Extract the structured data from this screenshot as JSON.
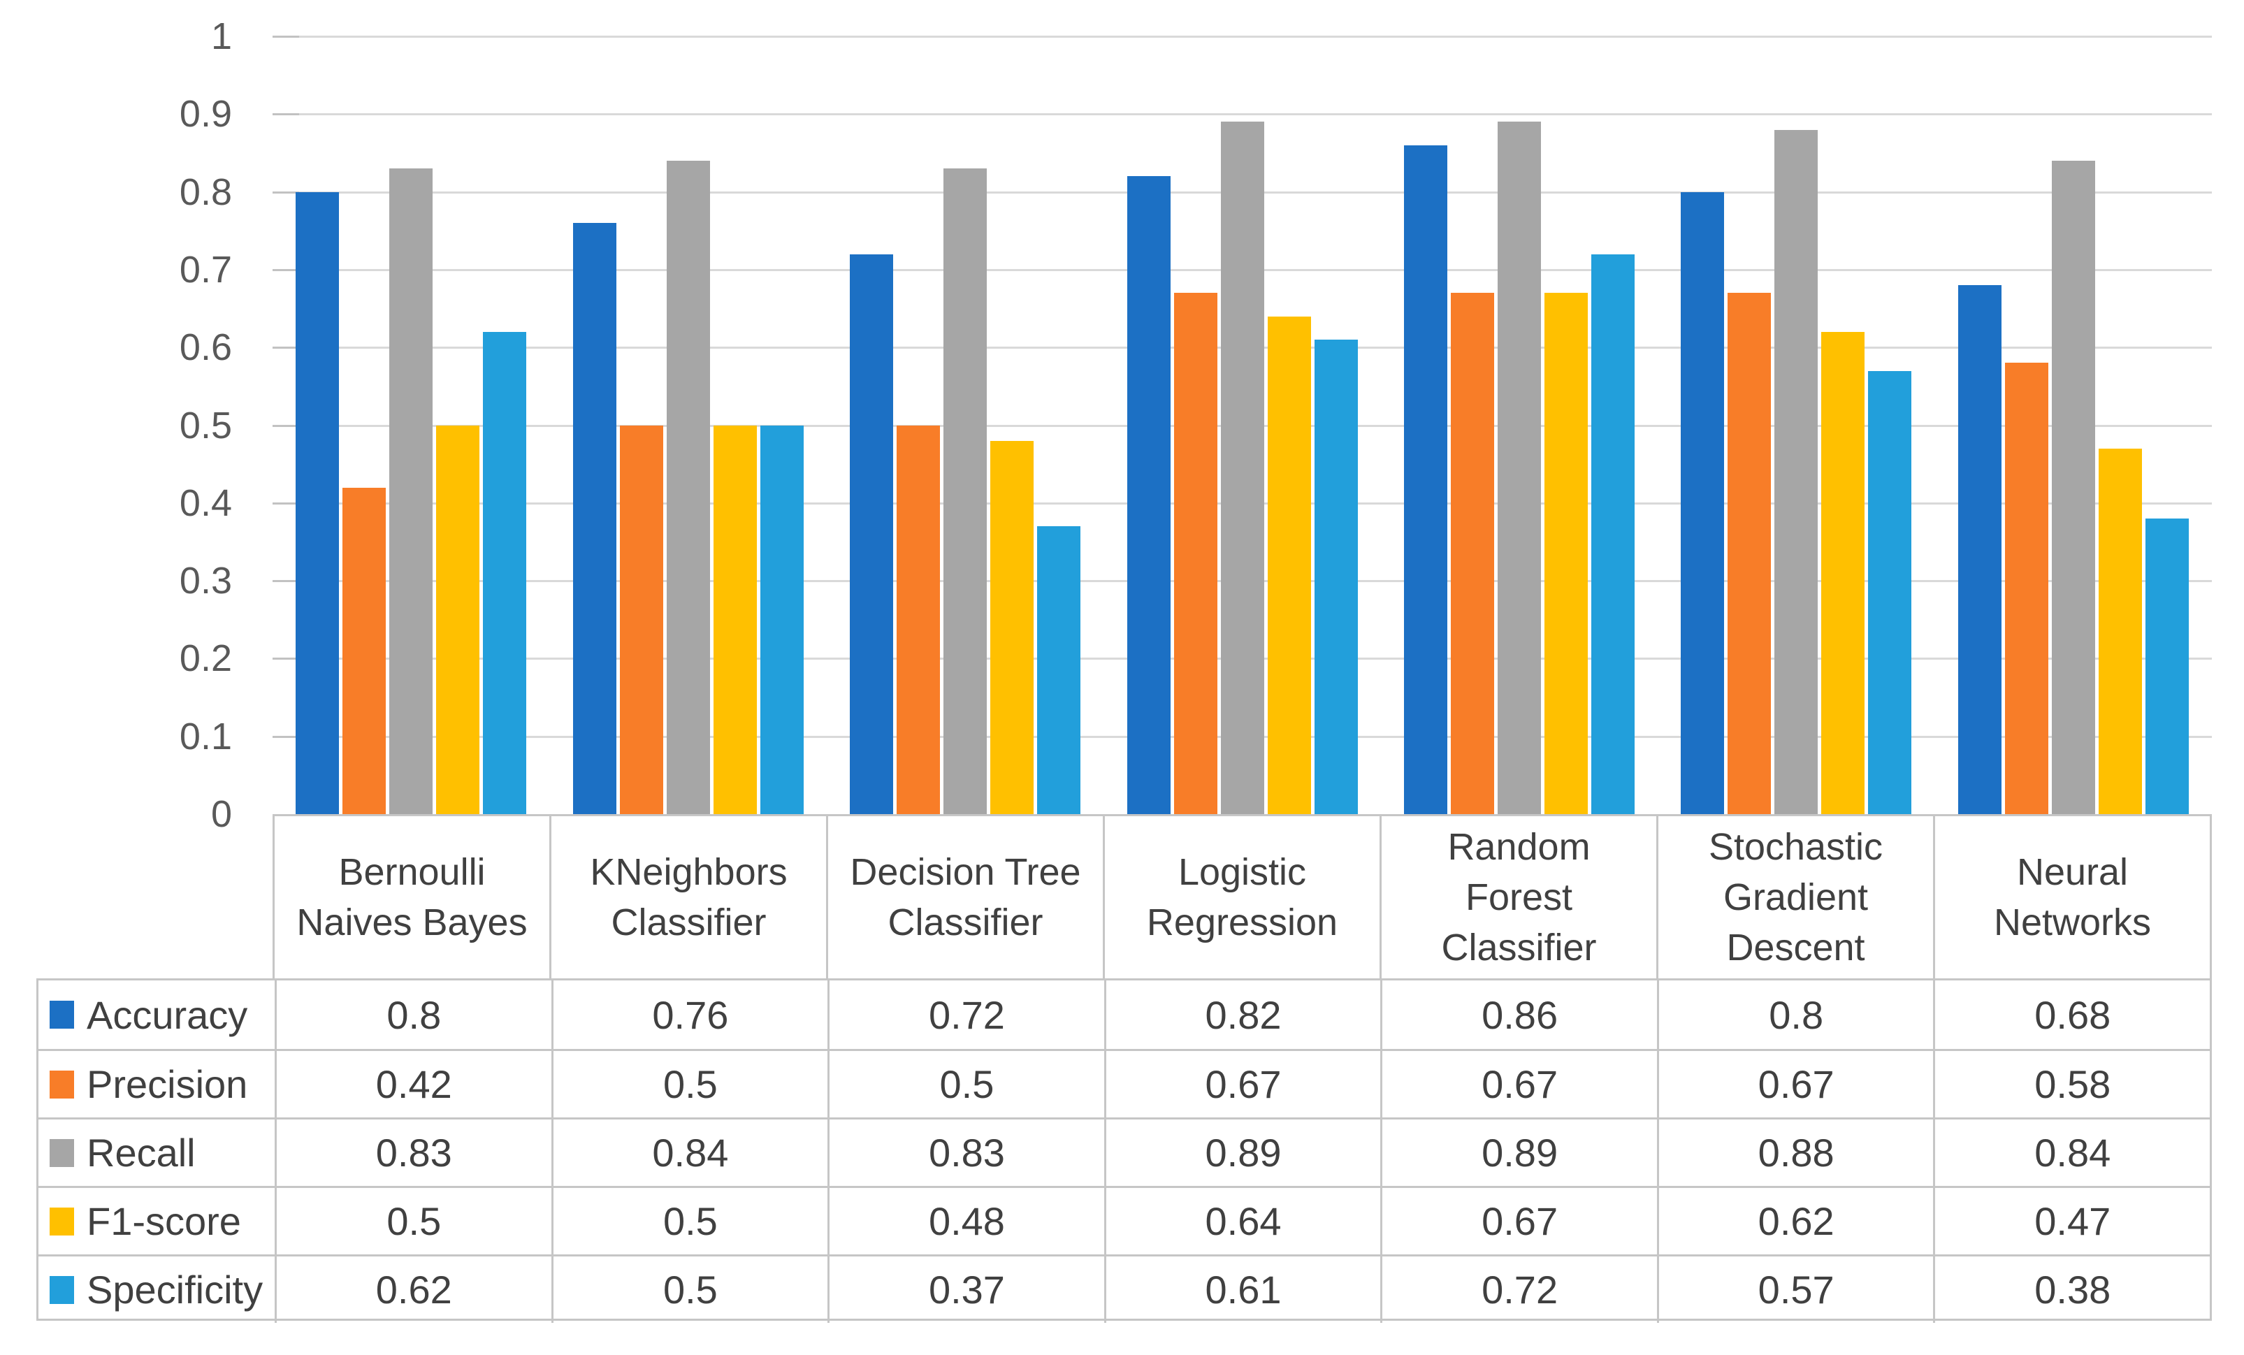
{
  "chart_data": {
    "type": "bar",
    "title": "",
    "xlabel": "",
    "ylabel": "",
    "categories": [
      "Bernoulli Naives Bayes",
      "KNeighbors Classifier",
      "Decision Tree Classifier",
      "Logistic Regression",
      "Random Forest Classifier",
      "Stochastic Gradient Descent",
      "Neural Networks"
    ],
    "categories_wrapped": [
      [
        "Bernoulli",
        "Naives Bayes"
      ],
      [
        "KNeighbors",
        "Classifier"
      ],
      [
        "Decision Tree",
        "Classifier"
      ],
      [
        "Logistic",
        "Regression"
      ],
      [
        "Random",
        "Forest",
        "Classifier"
      ],
      [
        "Stochastic",
        "Gradient",
        "Descent"
      ],
      [
        "Neural",
        "Networks"
      ]
    ],
    "series": [
      {
        "name": "Accuracy",
        "color": "#1C70C4",
        "values": [
          0.8,
          0.76,
          0.72,
          0.82,
          0.86,
          0.8,
          0.68
        ]
      },
      {
        "name": "Precision",
        "color": "#F87D28",
        "values": [
          0.42,
          0.5,
          0.5,
          0.67,
          0.67,
          0.67,
          0.58
        ]
      },
      {
        "name": "Recall",
        "color": "#A6A6A6",
        "values": [
          0.83,
          0.84,
          0.83,
          0.89,
          0.89,
          0.88,
          0.84
        ]
      },
      {
        "name": "F1-score",
        "color": "#FFC000",
        "values": [
          0.5,
          0.5,
          0.48,
          0.64,
          0.67,
          0.62,
          0.47
        ]
      },
      {
        "name": "Specificity",
        "color": "#229FDB",
        "values": [
          0.62,
          0.5,
          0.37,
          0.61,
          0.72,
          0.57,
          0.38
        ]
      }
    ],
    "y_axis": {
      "min": 0,
      "max": 1,
      "step": 0.1,
      "tick_labels": [
        "0",
        "0.1",
        "0.2",
        "0.3",
        "0.4",
        "0.5",
        "0.6",
        "0.7",
        "0.8",
        "0.9",
        "1"
      ]
    },
    "grid": true,
    "legend_position": "data-table-left-column",
    "colors": {
      "gridline": "#D9D9D9",
      "tick": "#C2C2C2",
      "table_border": "#C6C6C6",
      "axis_text": "#595959",
      "table_text": "#404040",
      "background": "#FFFFFF"
    }
  }
}
